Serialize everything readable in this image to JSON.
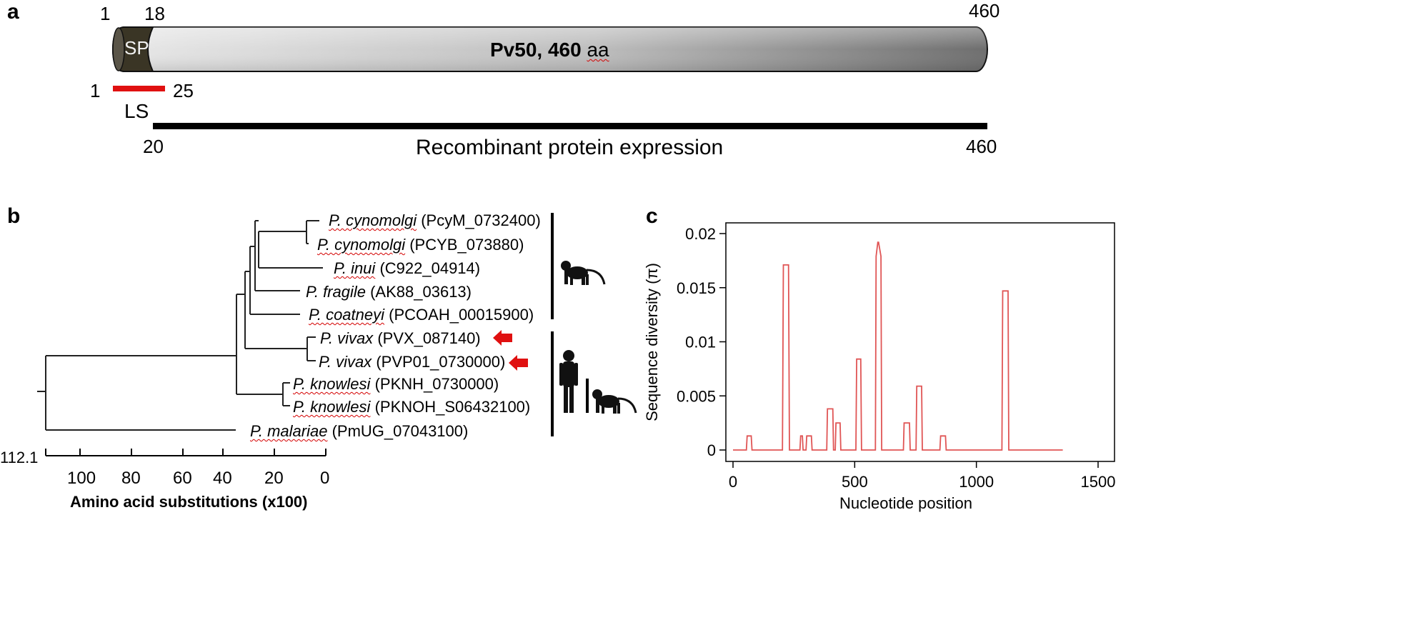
{
  "panel_a": {
    "panel_label": "a",
    "protein_label": "Pv50, 460 aa",
    "protein_name_part": "Pv50, 460 ",
    "protein_unit_part": "aa",
    "signal_peptide": "SP",
    "pos_start": "1",
    "pos_sp_end": "18",
    "pos_end": "460",
    "ls_start": "1",
    "ls_end": "25",
    "ls_label": "LS",
    "recomb_start": "20",
    "recomb_end": "460",
    "recomb_label": "Recombinant protein expression",
    "colors": {
      "ls_bar": "#e01010",
      "sp": "#3a3525",
      "protein_light": "#e6e6e6",
      "protein_dark": "#707070"
    }
  },
  "panel_b": {
    "panel_label": "b",
    "leaves": [
      {
        "species": "P. cynomolgi",
        "gene": "(PcyM_0732400)"
      },
      {
        "species": "P. cynomolgi",
        "gene": "(PCYB_073880)"
      },
      {
        "species": "P. inui",
        "gene": "(C922_04914)"
      },
      {
        "species": "P. fragile",
        "gene": "(AK88_03613)"
      },
      {
        "species": "P. coatneyi",
        "gene": "(PCOAH_00015900)"
      },
      {
        "species": "P. vivax",
        "gene": "(PVX_087140)"
      },
      {
        "species": "P. vivax",
        "gene": "(PVP01_0730000)"
      },
      {
        "species": "P. knowlesi",
        "gene": "(PKNH_0730000)"
      },
      {
        "species": "P. knowlesi",
        "gene": "(PKNOH_S06432100)"
      },
      {
        "species": "P. malariae",
        "gene": "(PmUG_07043100)"
      }
    ],
    "root_value": "112.1",
    "axis_ticks": [
      "100",
      "80",
      "60",
      "40",
      "20",
      "0"
    ],
    "axis_title": "Amino acid substitutions (x100)",
    "host_icons": [
      "monkey-icon",
      "human-icon",
      "monkey-icon"
    ],
    "arrow_color": "#e01010"
  },
  "panel_c": {
    "panel_label": "c"
  },
  "chart_data": {
    "type": "line",
    "title": "",
    "xlabel": "Nucleotide position",
    "ylabel": "Sequence diversity (π)",
    "xlim": [
      0,
      1500
    ],
    "ylim": [
      0,
      0.02
    ],
    "xticks": [
      "0",
      "500",
      "1000",
      "1500"
    ],
    "yticks": [
      "0",
      "0.005",
      "0.01",
      "0.015",
      "0.02"
    ],
    "color": "#e05555",
    "series": [
      {
        "x": [
          0,
          55,
          58,
          75,
          78,
          203,
          207,
          228,
          232,
          275,
          278,
          285,
          288,
          300,
          303,
          322,
          325,
          385,
          388,
          410,
          413,
          420,
          423,
          440,
          443,
          505,
          508,
          525,
          528,
          585,
          588,
          595,
          598,
          608,
          611,
          700,
          703,
          725,
          728,
          752,
          755,
          775,
          778,
          850,
          853,
          873,
          876,
          1105,
          1108,
          1130,
          1133,
          1355
        ],
        "y": [
          0,
          0,
          0.0013,
          0.0013,
          0,
          0,
          0.0171,
          0.0171,
          0,
          0,
          0.0013,
          0.0013,
          0,
          0,
          0.0013,
          0.0013,
          0,
          0,
          0.0038,
          0.0038,
          0,
          0,
          0.0025,
          0.0025,
          0,
          0,
          0.0084,
          0.0084,
          0,
          0,
          0.0179,
          0.0192,
          0.0192,
          0.0179,
          0,
          0,
          0.0025,
          0.0025,
          0,
          0,
          0.0059,
          0.0059,
          0,
          0,
          0.0013,
          0.0013,
          0,
          0,
          0.0147,
          0.0147,
          0,
          0
        ]
      }
    ]
  }
}
